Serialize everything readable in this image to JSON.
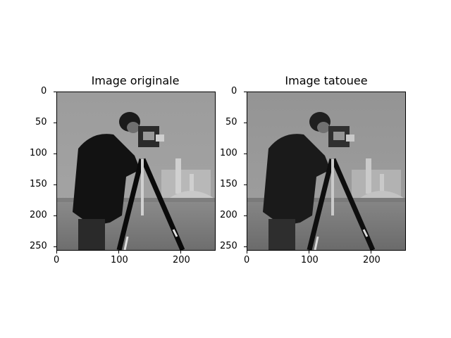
{
  "panels": [
    {
      "title": "Image originale",
      "y_ticks": [
        "0",
        "50",
        "100",
        "150",
        "200",
        "250"
      ],
      "x_ticks": [
        "0",
        "100",
        "200"
      ],
      "variant": "original"
    },
    {
      "title": "Image tatouee",
      "y_ticks": [
        "0",
        "50",
        "100",
        "150",
        "200",
        "250"
      ],
      "x_ticks": [
        "0",
        "100",
        "200"
      ],
      "variant": "watermarked"
    }
  ],
  "image_extent": {
    "x": [
      0,
      255
    ],
    "y": [
      0,
      255
    ]
  },
  "colors": {
    "sky": "#9a9a9a",
    "sky_watermarked": "#8f8f8f",
    "grass": "#7a7a7a",
    "coat": "#111111",
    "building": "#c8c8c8"
  }
}
